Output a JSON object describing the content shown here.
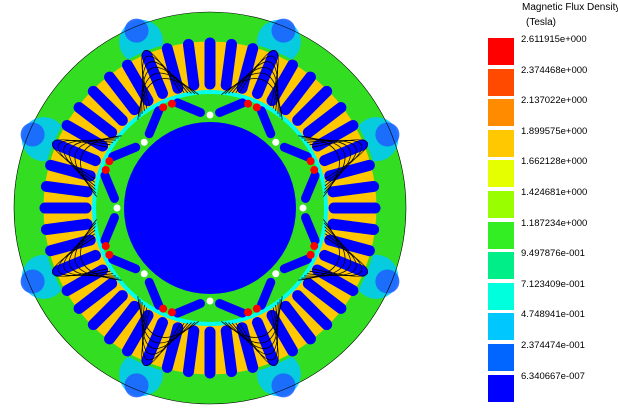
{
  "legend": {
    "title": "Magnetic Flux Density",
    "unit": "(Tesla)",
    "entries": [
      {
        "label": "2.611915e+000",
        "color": "#ff0000"
      },
      {
        "label": "2.374468e+000",
        "color": "#ff4a00"
      },
      {
        "label": "2.137022e+000",
        "color": "#ff8c00"
      },
      {
        "label": "1.899575e+000",
        "color": "#ffc800"
      },
      {
        "label": "1.662128e+000",
        "color": "#e6ff00"
      },
      {
        "label": "1.424681e+000",
        "color": "#99ff00"
      },
      {
        "label": "1.187234e+000",
        "color": "#33ee22"
      },
      {
        "label": "9.497876e-001",
        "color": "#00ee88"
      },
      {
        "label": "7.123409e-001",
        "color": "#00ffdd"
      },
      {
        "label": "4.748941e-001",
        "color": "#00c8ff"
      },
      {
        "label": "2.374474e-001",
        "color": "#0066ff"
      },
      {
        "label": "6.340667e-007",
        "color": "#0000ff"
      }
    ]
  },
  "plot": {
    "stator_slots": 48,
    "rotor_poles": 8,
    "colors": {
      "yoke": "#33dd22",
      "yoke_pole_region": "#00c8ff",
      "yoke_deep": "#1e64ff",
      "tooth": "#ffc800",
      "tooth_hot": "#ff4a00",
      "slot": "#0000ff",
      "shaft": "#0000ff",
      "rotor_iron": "#33dd22",
      "rotor_bridge": "#ff0000",
      "rotor_pocket": "#0000ff",
      "airgap": "#00ffee",
      "flux_line": "#000000"
    }
  }
}
